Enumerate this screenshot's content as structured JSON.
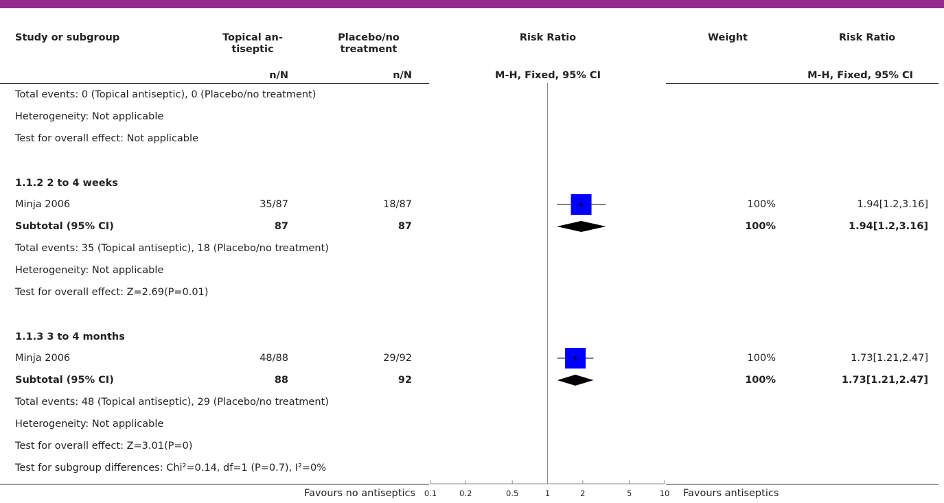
{
  "colors": {
    "accent_bar": "#962A8E",
    "box": "#0000FF",
    "diamond": "#000000",
    "axis": "#888888"
  },
  "header": {
    "col_study": "Study or subgroup",
    "col_topical_line1": "Topical an-",
    "col_topical_line2": "tiseptic",
    "col_placebo_line1": "Placebo/no",
    "col_placebo_line2": "treatment",
    "col_rr": "Risk Ratio",
    "col_weight": "Weight",
    "col_rr2": "Risk Ratio",
    "sub_topical": "n/N",
    "sub_placebo": "n/N",
    "sub_rr": "M-H, Fixed, 95% CI",
    "sub_rr2": "M-H, Fixed, 95% CI"
  },
  "rows": {
    "r1": "Total events: 0 (Topical antiseptic), 0 (Placebo/no treatment)",
    "r2": "Heterogeneity: Not applicable",
    "r3": "Test for overall effect: Not applicable",
    "g2_title": "1.1.2 2 to 4 weeks",
    "g2_study": "Minja 2006",
    "g2_study_t": "35/87",
    "g2_study_p": "18/87",
    "g2_study_w": "100%",
    "g2_study_rr": "1.94[1.2,3.16]",
    "g2_sub": "Subtotal (95% CI)",
    "g2_sub_t": "87",
    "g2_sub_p": "87",
    "g2_sub_w": "100%",
    "g2_sub_rr": "1.94[1.2,3.16]",
    "g2_events": "Total events: 35 (Topical antiseptic), 18 (Placebo/no treatment)",
    "g2_het": "Heterogeneity: Not applicable",
    "g2_test": "Test for overall effect: Z=2.69(P=0.01)",
    "g3_title": "1.1.3 3 to 4 months",
    "g3_study": "Minja 2006",
    "g3_study_t": "48/88",
    "g3_study_p": "29/92",
    "g3_study_w": "100%",
    "g3_study_rr": "1.73[1.21,2.47]",
    "g3_sub": "Subtotal (95% CI)",
    "g3_sub_t": "88",
    "g3_sub_p": "92",
    "g3_sub_w": "100%",
    "g3_sub_rr": "1.73[1.21,2.47]",
    "g3_events": "Total events: 48 (Topical antiseptic), 29 (Placebo/no treatment)",
    "g3_het": "Heterogeneity: Not applicable",
    "g3_test": "Test for overall effect: Z=3.01(P=0)",
    "subgroup_test": "Test for subgroup differences: Chi²=0.14, df=1 (P=0.7), I²=0%"
  },
  "footer": {
    "favours_left": "Favours no antiseptics",
    "favours_right": "Favours antiseptics"
  },
  "chart_data": {
    "type": "forest",
    "scale": "log",
    "xlim": [
      0.1,
      10
    ],
    "ticks": [
      0.1,
      0.2,
      0.5,
      1,
      2,
      5,
      10
    ],
    "tick_labels": [
      "0.1",
      "0.2",
      "0.5",
      "1",
      "2",
      "5",
      "10"
    ],
    "null_line": 1,
    "studies": [
      {
        "group": "1.1.2 2 to 4 weeks",
        "name": "Minja 2006",
        "kind": "study",
        "rr": 1.94,
        "lo": 1.2,
        "hi": 3.16,
        "weight": 100
      },
      {
        "group": "1.1.2 2 to 4 weeks",
        "name": "Subtotal (95% CI)",
        "kind": "subtotal",
        "rr": 1.94,
        "lo": 1.2,
        "hi": 3.16,
        "weight": 100
      },
      {
        "group": "1.1.3 3 to 4 months",
        "name": "Minja 2006",
        "kind": "study",
        "rr": 1.73,
        "lo": 1.21,
        "hi": 2.47,
        "weight": 100
      },
      {
        "group": "1.1.3 3 to 4 months",
        "name": "Subtotal (95% CI)",
        "kind": "subtotal",
        "rr": 1.73,
        "lo": 1.21,
        "hi": 2.47,
        "weight": 100
      }
    ]
  }
}
